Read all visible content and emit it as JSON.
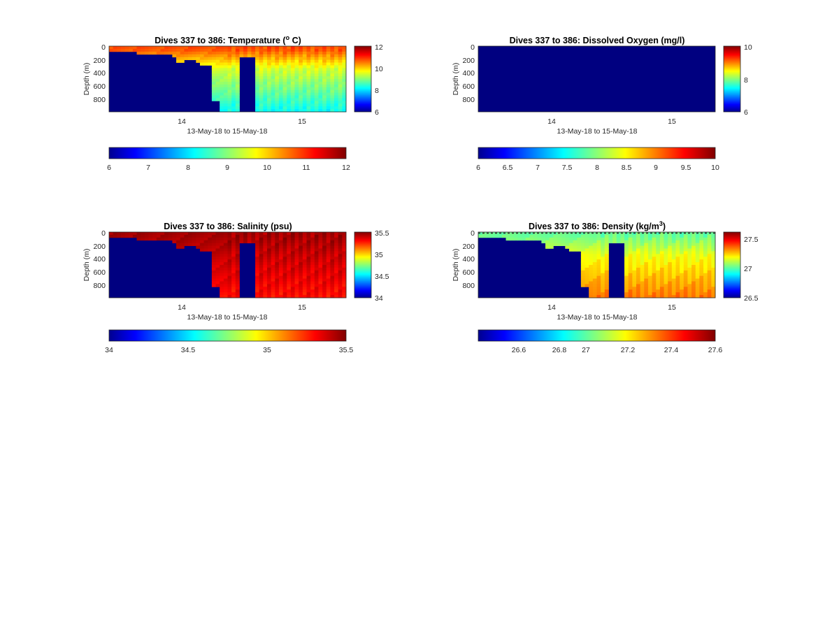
{
  "figure": {
    "panels": [
      {
        "id": "temperature",
        "title": "Dives 337 to 386: Temperature (",
        "title_sup": "o",
        "title_tail": " C)",
        "xlabel": "13-May-18 to 15-May-18",
        "ylabel": "Depth (m)",
        "x_ticks": [
          "14",
          "15"
        ],
        "y_ticks": [
          "0",
          "200",
          "400",
          "600",
          "800"
        ],
        "cbar_ticks": [
          "6",
          "8",
          "10",
          "12"
        ],
        "hbar_ticks": [
          "6",
          "7",
          "8",
          "9",
          "10",
          "11",
          "12"
        ]
      },
      {
        "id": "oxygen",
        "title": "Dives 337 to 386: Dissolved Oxygen (mg/l)",
        "title_sup": "",
        "title_tail": "",
        "xlabel": "13-May-18 to 15-May-18",
        "ylabel": "Depth (m)",
        "x_ticks": [
          "14",
          "15"
        ],
        "y_ticks": [
          "0",
          "200",
          "400",
          "600",
          "800"
        ],
        "cbar_ticks": [
          "6",
          "8",
          "10"
        ],
        "hbar_ticks": [
          "6",
          "6.5",
          "7",
          "7.5",
          "8",
          "8.5",
          "9",
          "9.5",
          "10"
        ]
      },
      {
        "id": "salinity",
        "title": "Dives 337 to 386: Salinity (psu)",
        "title_sup": "",
        "title_tail": "",
        "xlabel": "13-May-18 to 15-May-18",
        "ylabel": "Depth (m)",
        "x_ticks": [
          "14",
          "15"
        ],
        "y_ticks": [
          "0",
          "200",
          "400",
          "600",
          "800"
        ],
        "cbar_ticks": [
          "34",
          "34.5",
          "35",
          "35.5"
        ],
        "hbar_ticks": [
          "34",
          "34.5",
          "35",
          "35.5"
        ]
      },
      {
        "id": "density",
        "title": "Dives 337 to 386: Density (kg/m",
        "title_sup": "3",
        "title_tail": ")",
        "xlabel": "13-May-18 to 15-May-18",
        "ylabel": "Depth (m)",
        "x_ticks": [
          "14",
          "15"
        ],
        "y_ticks": [
          "0",
          "200",
          "400",
          "600",
          "800"
        ],
        "cbar_ticks": [
          "26.5",
          "27",
          "27.5"
        ],
        "hbar_ticks": [
          "26.6",
          "26.8",
          "27",
          "27.2",
          "27.4",
          "27.6"
        ]
      }
    ]
  },
  "chart_data": [
    {
      "type": "heatmap",
      "title": "Dives 337 to 386: Temperature (o C)",
      "xlabel": "13-May-18 to 15-May-18",
      "ylabel": "Depth (m)",
      "colormap": "jet",
      "x_range_days": [
        13.4,
        15.37
      ],
      "y_range": [
        0,
        960
      ],
      "y_reversed": true,
      "clim": [
        6,
        12
      ],
      "vertical_colorbar_ticks": [
        6,
        8,
        10,
        12
      ],
      "horizontal_colorbar_ticks": [
        6,
        7,
        8,
        9,
        10,
        11,
        12
      ],
      "surface_value": 10.8,
      "mid_value": 9.5,
      "deep_value": 8.3,
      "fill_value": 6
    },
    {
      "type": "heatmap",
      "title": "Dives 337 to 386: Dissolved Oxygen (mg/l)",
      "xlabel": "13-May-18 to 15-May-18",
      "ylabel": "Depth (m)",
      "colormap": "jet",
      "x_range_days": [
        13.4,
        15.37
      ],
      "y_range": [
        0,
        960
      ],
      "y_reversed": true,
      "clim": [
        6,
        10
      ],
      "vertical_colorbar_ticks": [
        6,
        8,
        10
      ],
      "horizontal_colorbar_ticks": [
        6,
        6.5,
        7,
        7.5,
        8,
        8.5,
        9,
        9.5,
        10
      ],
      "fill_value": 6
    },
    {
      "type": "heatmap",
      "title": "Dives 337 to 386: Salinity (psu)",
      "xlabel": "13-May-18 to 15-May-18",
      "ylabel": "Depth (m)",
      "colormap": "jet",
      "x_range_days": [
        13.4,
        15.37
      ],
      "y_range": [
        0,
        960
      ],
      "y_reversed": true,
      "clim": [
        34,
        35.5
      ],
      "vertical_colorbar_ticks": [
        34,
        34.5,
        35,
        35.5
      ],
      "horizontal_colorbar_ticks": [
        34,
        34.5,
        35,
        35.5
      ],
      "surface_value": 35.45,
      "mid_value": 35.4,
      "deep_value": 35.3,
      "fill_value": 34
    },
    {
      "type": "heatmap",
      "title": "Dives 337 to 386: Density (kg/m3)",
      "xlabel": "13-May-18 to 15-May-18",
      "ylabel": "Depth (m)",
      "colormap": "jet",
      "x_range_days": [
        13.4,
        15.37
      ],
      "y_range": [
        0,
        960
      ],
      "y_reversed": true,
      "clim": [
        26.5,
        27.65
      ],
      "vertical_colorbar_ticks": [
        26.5,
        27,
        27.5
      ],
      "horizontal_colorbar_ticks": [
        26.6,
        26.8,
        27,
        27.2,
        27.4,
        27.6
      ],
      "surface_value": 27.05,
      "mid_value": 27.2,
      "deep_value": 27.38,
      "fill_value": 26.5
    }
  ]
}
